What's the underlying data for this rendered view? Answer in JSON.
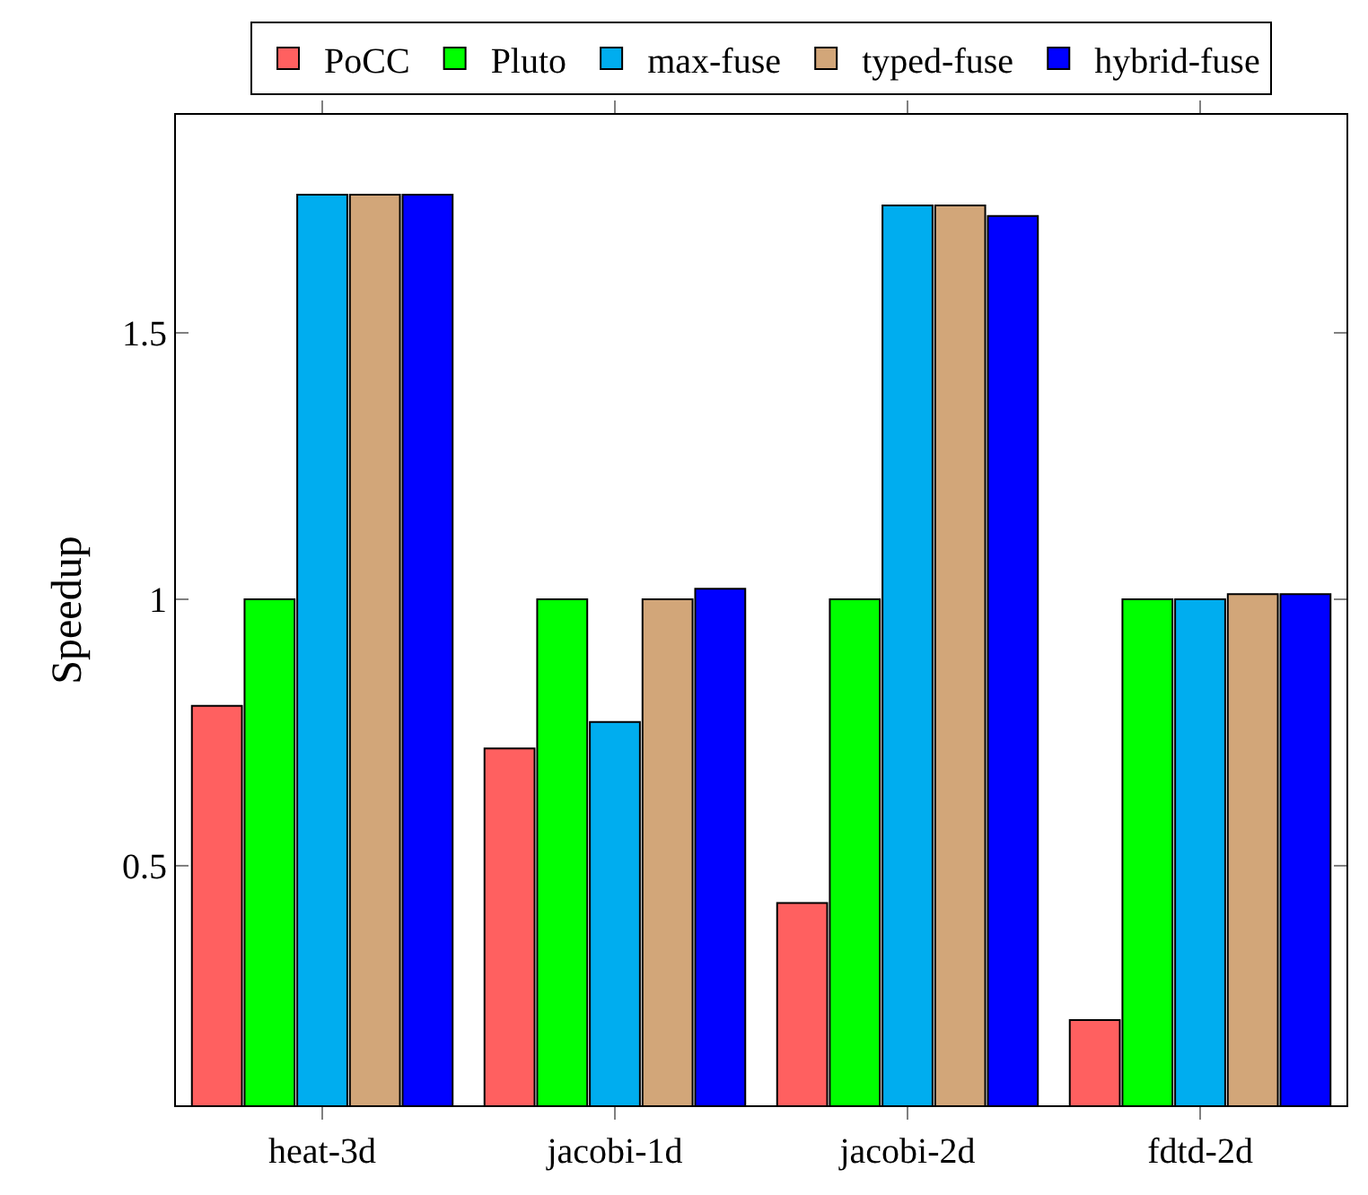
{
  "chart_data": {
    "type": "bar",
    "ylabel": "Speedup",
    "categories": [
      "heat-3d",
      "jacobi-1d",
      "jacobi-2d",
      "fdtd-2d"
    ],
    "series": [
      {
        "name": "PoCC",
        "color": "#ff6060",
        "values": [
          0.8,
          0.72,
          0.43,
          0.21
        ]
      },
      {
        "name": "Pluto",
        "color": "#00ff00",
        "values": [
          1,
          1,
          1,
          1
        ]
      },
      {
        "name": "max-fuse",
        "color": "#00adef",
        "values": [
          1.76,
          0.77,
          1.74,
          1
        ]
      },
      {
        "name": "typed-fuse",
        "color": "#d2a679",
        "values": [
          1.76,
          1,
          1.74,
          1.01
        ]
      },
      {
        "name": "hybrid-fuse",
        "color": "#0000ff",
        "values": [
          1.76,
          1.02,
          1.72,
          1.01
        ]
      }
    ],
    "ylim": [
      0.05,
      1.91
    ],
    "yticks": [
      0.5,
      1,
      1.5
    ],
    "legend": "top"
  }
}
